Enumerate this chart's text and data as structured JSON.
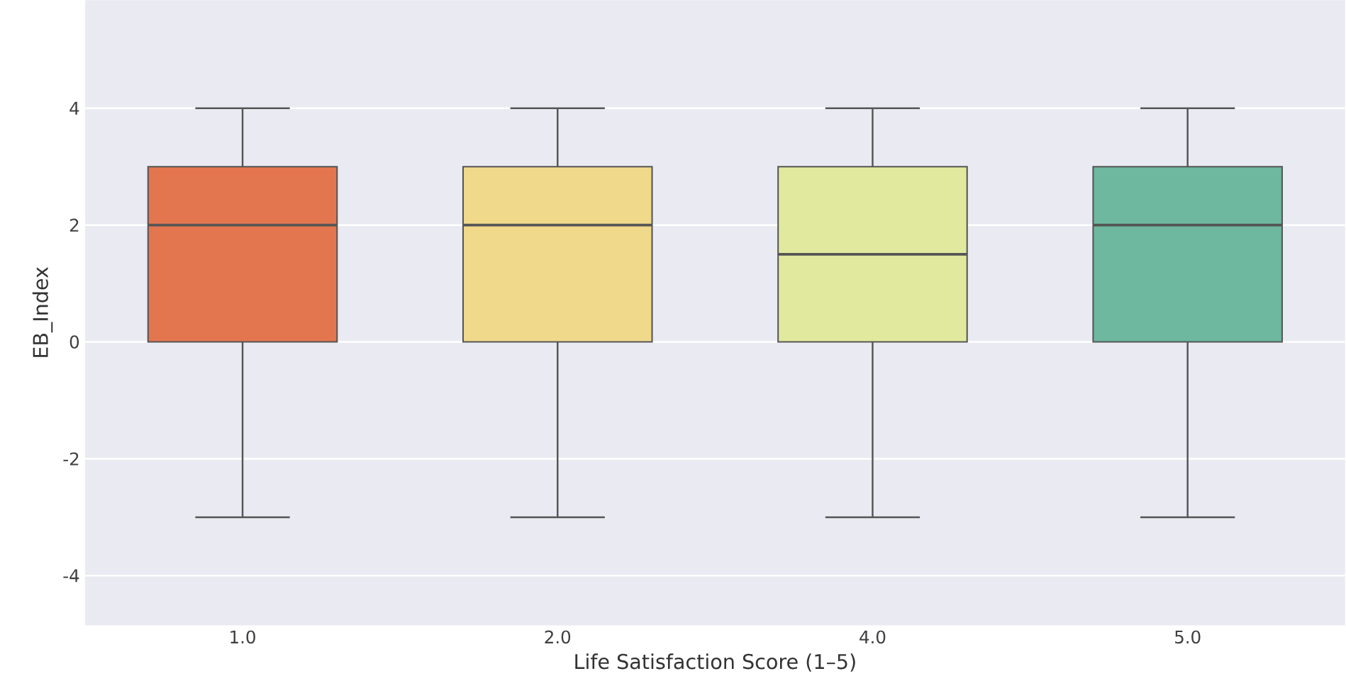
{
  "chart_data": {
    "type": "box",
    "xlabel": "Life Satisfaction Score (1–5)",
    "ylabel": "EB_Index",
    "categories": [
      "1.0",
      "2.0",
      "4.0",
      "5.0"
    ],
    "ylim": [
      -4.85,
      5.85
    ],
    "yticks": [
      -4,
      -2,
      0,
      2,
      4
    ],
    "grid": "y",
    "colors": [
      "#e3764f",
      "#f1d98c",
      "#e0e99d",
      "#6db89f"
    ],
    "boxes": [
      {
        "low": -3,
        "q1": 0,
        "median": 2,
        "q3": 3,
        "high": 4
      },
      {
        "low": -3,
        "q1": 0,
        "median": 2,
        "q3": 3,
        "high": 4
      },
      {
        "low": -3,
        "q1": 0,
        "median": 1.5,
        "q3": 3,
        "high": 4
      },
      {
        "low": -3,
        "q1": 0,
        "median": 2,
        "q3": 3,
        "high": 4
      }
    ]
  }
}
